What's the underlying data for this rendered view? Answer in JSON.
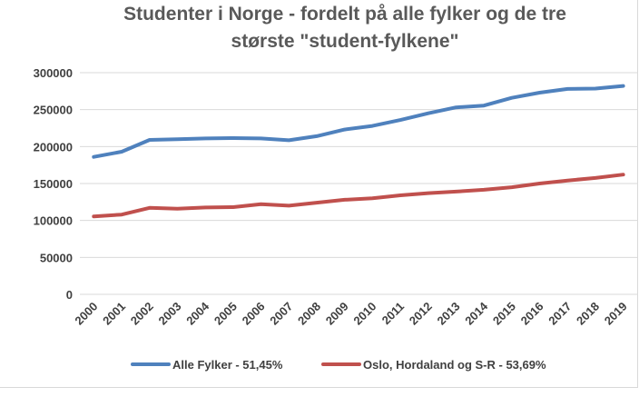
{
  "chart_data": {
    "type": "line",
    "title_lines": [
      "Studenter i Norge - fordelt på alle fylker og de tre",
      "største \"student-fylkene\""
    ],
    "x": [
      "2000",
      "2001",
      "2002",
      "2003",
      "2004",
      "2005",
      "2006",
      "2007",
      "2008",
      "2009",
      "2010",
      "2011",
      "2012",
      "2013",
      "2014",
      "2015",
      "2016",
      "2017",
      "2018",
      "2019"
    ],
    "ylim": [
      0,
      300000
    ],
    "yticks": [
      "0",
      "50000",
      "100000",
      "150000",
      "200000",
      "250000",
      "300000"
    ],
    "grid": true,
    "legend_position": "bottom",
    "series": [
      {
        "name": "Alle Fylker - 51,45%",
        "color": "#4f81bd",
        "values": [
          186000,
          193000,
          209000,
          210000,
          211000,
          211500,
          211000,
          208500,
          214000,
          223000,
          228000,
          236000,
          245000,
          253000,
          255500,
          266000,
          273000,
          278000,
          278500,
          282000
        ]
      },
      {
        "name": "Oslo, Hordaland og S-R  - 53,69%",
        "color": "#c0504d",
        "values": [
          105500,
          108000,
          117000,
          116000,
          117500,
          118000,
          122000,
          120000,
          124000,
          128000,
          130000,
          134000,
          137000,
          139000,
          141500,
          145000,
          150000,
          154000,
          157500,
          162000
        ]
      }
    ]
  }
}
